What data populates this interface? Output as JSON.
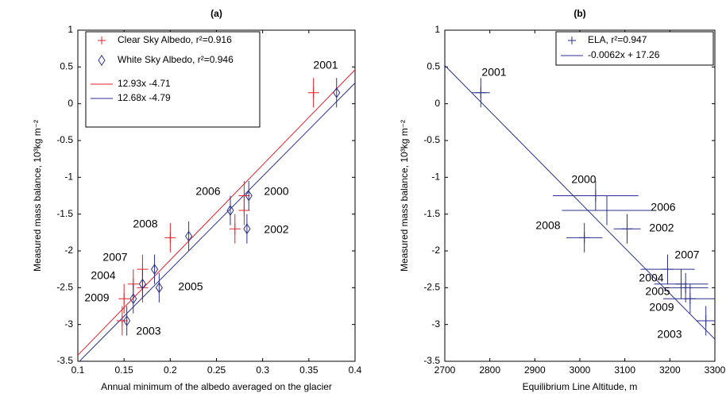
{
  "chart_data": [
    {
      "type": "scatter",
      "title": "(a)",
      "x_label": "Annual minimum of the albedo averaged on the glacier",
      "y_label": "Measured mass balance, 10³kg m⁻²",
      "xlim": [
        0.1,
        0.4
      ],
      "xticks": [
        0.1,
        0.15,
        0.2,
        0.25,
        0.3,
        0.35,
        0.4
      ],
      "ylim": [
        -3.5,
        1
      ],
      "yticks": [
        1,
        0.5,
        0,
        -0.5,
        -1,
        -1.5,
        -2,
        -2.5,
        -3,
        -3.5
      ],
      "point_labels": [
        "2001",
        "2000",
        "2006",
        "2002",
        "2008",
        "2007",
        "2004",
        "2005",
        "2009",
        "2003"
      ],
      "series": [
        {
          "name": "Clear Sky Albedo, r²=0.916",
          "color": "#e8202a",
          "marker": "plus",
          "x": [
            0.355,
            0.28,
            0.28,
            0.27,
            0.2,
            0.17,
            0.16,
            0.17,
            0.15,
            0.148
          ],
          "values": [
            0.15,
            -1.25,
            -1.45,
            -1.7,
            -1.82,
            -2.25,
            -2.45,
            -2.5,
            -2.65,
            -2.95
          ],
          "y_err": [
            0.2,
            0.2,
            0.2,
            0.2,
            0.2,
            0.2,
            0.2,
            0.2,
            0.2,
            0.2
          ]
        },
        {
          "name": "White Sky Albedo, r²=0.946",
          "color": "#2b2f8f",
          "marker": "diamond",
          "x": [
            0.38,
            0.285,
            0.265,
            0.283,
            0.22,
            0.183,
            0.17,
            0.188,
            0.16,
            0.153
          ],
          "values": [
            0.15,
            -1.25,
            -1.45,
            -1.7,
            -1.8,
            -2.25,
            -2.45,
            -2.5,
            -2.65,
            -2.95
          ],
          "y_err": [
            0.2,
            0.2,
            0.2,
            0.2,
            0.2,
            0.2,
            0.2,
            0.2,
            0.2,
            0.2
          ]
        }
      ],
      "fits": [
        {
          "name": "12.93x -4.71",
          "color": "#e8202a",
          "slope": 12.93,
          "intercept": -4.71
        },
        {
          "name": "12.68x -4.79",
          "color": "#2b2f8f",
          "slope": 12.68,
          "intercept": -4.79
        }
      ]
    },
    {
      "type": "scatter",
      "title": "(b)",
      "x_label": "Equilibrium Line Altitude, m",
      "y_label": "Measured mass balance, 10³kg m⁻²",
      "xlim": [
        2700,
        3300
      ],
      "xticks": [
        2700,
        2800,
        2900,
        3000,
        3100,
        3200,
        3300
      ],
      "ylim": [
        -3.5,
        1
      ],
      "yticks": [
        1,
        0.5,
        0,
        -0.5,
        -1,
        -1.5,
        -2,
        -2.5,
        -3,
        -3.5
      ],
      "point_labels": [
        "2001",
        "2000",
        "2006",
        "2002",
        "2008",
        "2007",
        "2004",
        "2005",
        "2009",
        "2003"
      ],
      "series": [
        {
          "name": "ELA, r²=0.947",
          "color": "#2b2f8f",
          "marker": "plus",
          "x": [
            2780,
            3035,
            3060,
            3105,
            3010,
            3195,
            3225,
            3235,
            3245,
            3280
          ],
          "values": [
            0.15,
            -1.25,
            -1.45,
            -1.7,
            -1.82,
            -2.25,
            -2.45,
            -2.5,
            -2.65,
            -2.95
          ],
          "y_err": [
            0.2,
            0.2,
            0.2,
            0.2,
            0.2,
            0.2,
            0.2,
            0.2,
            0.2,
            0.2
          ],
          "x_err": [
            20,
            95,
            100,
            30,
            40,
            60,
            60,
            50,
            60,
            20
          ]
        }
      ],
      "fits": [
        {
          "name": "-0.0062x + 17.26",
          "color": "#2b2f8f",
          "slope": -0.0062,
          "intercept": 17.26
        }
      ]
    }
  ]
}
